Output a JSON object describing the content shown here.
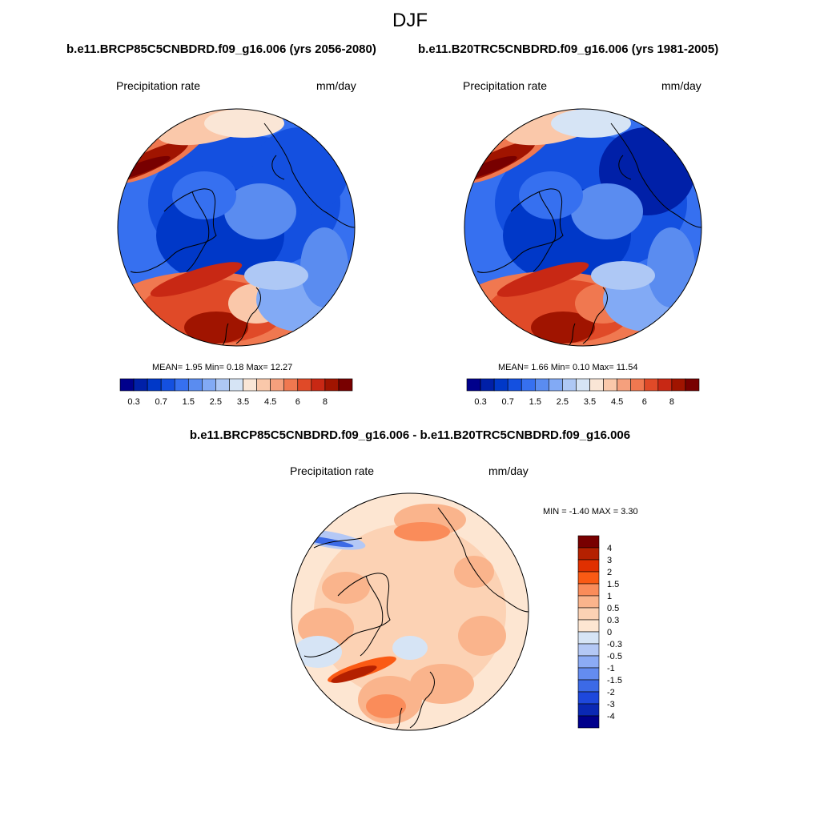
{
  "page": {
    "season": "DJF",
    "title_left": "b.e11.BRCP85C5CNBDRD.f09_g16.006 (yrs 2056-2080)",
    "title_right": "b.e11.B20TRC5CNBDRD.f09_g16.006 (yrs 1981-2005)",
    "title_diff": "b.e11.BRCP85C5CNBDRD.f09_g16.006 - b.e11.B20TRC5CNBDRD.f09_g16.006"
  },
  "chart_data": [
    {
      "type": "heatmap",
      "projection": "north polar stereographic",
      "title": "b.e11.BRCP85C5CNBDRD.f09_g16.006 (yrs 2056-2080)",
      "variable": "Precipitation rate",
      "units": "mm/day",
      "stats": {
        "mean_label": "MEAN=",
        "mean": "1.95",
        "min_label": "Min=",
        "min": "0.18",
        "max_label": "Max=",
        "max": "12.27"
      },
      "colorbar": {
        "levels": [
          0.2,
          0.3,
          0.5,
          0.7,
          1,
          1.5,
          2,
          2.5,
          3,
          3.5,
          4,
          4.5,
          5,
          6,
          7,
          8
        ],
        "tick_labels": [
          "0.3",
          "0.7",
          "1.5",
          "2.5",
          "3.5",
          "4.5",
          "6",
          "8"
        ],
        "colors": [
          "#00008c",
          "#0020a8",
          "#0038c8",
          "#1450e0",
          "#3670f0",
          "#5a8cf0",
          "#82aaf5",
          "#aec8f5",
          "#d6e4f5",
          "#fae6d6",
          "#fac8aa",
          "#f5a07d",
          "#f07850",
          "#e04a28",
          "#c82814",
          "#a01400",
          "#780000"
        ]
      }
    },
    {
      "type": "heatmap",
      "projection": "north polar stereographic",
      "title": "b.e11.B20TRC5CNBDRD.f09_g16.006 (yrs 1981-2005)",
      "variable": "Precipitation rate",
      "units": "mm/day",
      "stats": {
        "mean_label": "MEAN=",
        "mean": "1.66",
        "min_label": "Min=",
        "min": "0.10",
        "max_label": "Max=",
        "max": "11.54"
      },
      "colorbar": {
        "levels": [
          0.2,
          0.3,
          0.5,
          0.7,
          1,
          1.5,
          2,
          2.5,
          3,
          3.5,
          4,
          4.5,
          5,
          6,
          7,
          8
        ],
        "tick_labels": [
          "0.3",
          "0.7",
          "1.5",
          "2.5",
          "3.5",
          "4.5",
          "6",
          "8"
        ],
        "colors": [
          "#00008c",
          "#0020a8",
          "#0038c8",
          "#1450e0",
          "#3670f0",
          "#5a8cf0",
          "#82aaf5",
          "#aec8f5",
          "#d6e4f5",
          "#fae6d6",
          "#fac8aa",
          "#f5a07d",
          "#f07850",
          "#e04a28",
          "#c82814",
          "#a01400",
          "#780000"
        ]
      }
    },
    {
      "type": "heatmap",
      "projection": "north polar stereographic",
      "title": "b.e11.BRCP85C5CNBDRD.f09_g16.006 - b.e11.B20TRC5CNBDRD.f09_g16.006",
      "variable": "Precipitation rate",
      "units": "mm/day",
      "stats": {
        "min_label": "MIN =",
        "min": "-1.40",
        "max_label": "MAX =",
        "max": "3.30"
      },
      "colorbar": {
        "tick_labels": [
          "4",
          "3",
          "2",
          "1.5",
          "1",
          "0.5",
          "0.3",
          "0",
          "-0.3",
          "-0.5",
          "-1",
          "-1.5",
          "-2",
          "-3",
          "-4"
        ],
        "colors": [
          "#780000",
          "#b42000",
          "#e03000",
          "#fa5a14",
          "#fa8c5a",
          "#fab48c",
          "#fcd2b4",
          "#fde6d2",
          "#d6e4f5",
          "#b4c8f5",
          "#8cabf5",
          "#648cf0",
          "#3c6ae6",
          "#1e48dc",
          "#0a28b4",
          "#00008c"
        ]
      }
    }
  ]
}
